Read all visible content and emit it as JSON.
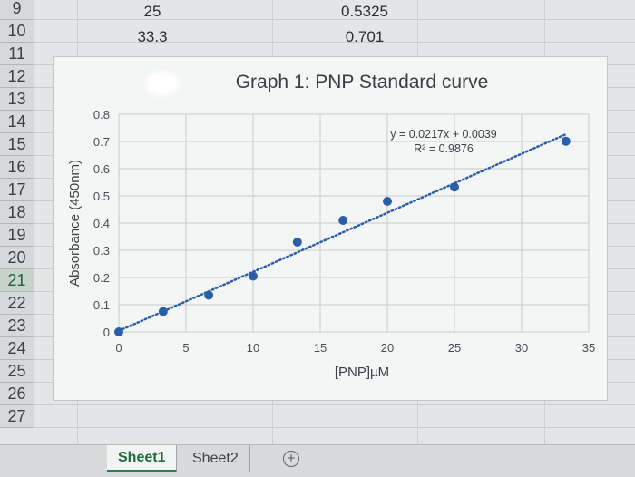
{
  "spreadsheet": {
    "row_numbers": [
      "9",
      "10",
      "11",
      "12",
      "13",
      "14",
      "15",
      "16",
      "17",
      "18",
      "19",
      "20",
      "21",
      "22",
      "23",
      "24",
      "25",
      "26",
      "27"
    ],
    "selected_row": "21",
    "rows": [
      {
        "row": "9",
        "a": "25",
        "b": "0.5325"
      },
      {
        "row": "10",
        "a": "33.3",
        "b": "0.701"
      }
    ]
  },
  "tabs": [
    {
      "label": "Sheet1",
      "active": true
    },
    {
      "label": "Sheet2",
      "active": false
    }
  ],
  "add_sheet_icon": "plus-circle-icon",
  "chart_data": {
    "type": "scatter",
    "title": "Graph 1: PNP Standard curve",
    "xlabel": "[PNP]µM",
    "ylabel": "Absorbance (450nm)",
    "xlim": [
      0,
      35
    ],
    "ylim": [
      0,
      0.8
    ],
    "x_ticks": [
      "0",
      "5",
      "10",
      "15",
      "20",
      "25",
      "30",
      "35"
    ],
    "y_ticks": [
      "0",
      "0.1",
      "0.2",
      "0.3",
      "0.4",
      "0.5",
      "0.6",
      "0.7",
      "0.8"
    ],
    "grid": true,
    "points": [
      {
        "x": 0,
        "y": 0
      },
      {
        "x": 3.3,
        "y": 0.075
      },
      {
        "x": 6.7,
        "y": 0.135
      },
      {
        "x": 10,
        "y": 0.205
      },
      {
        "x": 13.3,
        "y": 0.33
      },
      {
        "x": 16.7,
        "y": 0.41
      },
      {
        "x": 20,
        "y": 0.48
      },
      {
        "x": 25,
        "y": 0.5325
      },
      {
        "x": 33.3,
        "y": 0.701
      }
    ],
    "trendline": {
      "slope": 0.0217,
      "intercept": 0.0039,
      "style": "dotted"
    },
    "equation": "y = 0.0217x + 0.0039",
    "r_squared": "R² = 0.9876",
    "marker_color": "#2a5ea8",
    "trend_color": "#2a5ea8"
  }
}
